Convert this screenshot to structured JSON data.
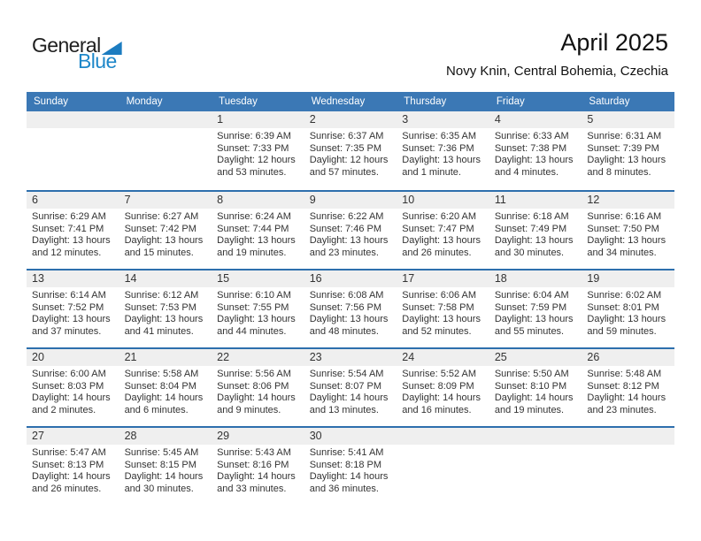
{
  "logo": {
    "general": "General",
    "blue": "Blue"
  },
  "title": "April 2025",
  "subtitle": "Novy Knin, Central Bohemia, Czechia",
  "colors": {
    "header_blue": "#3b78b5",
    "separator_blue": "#2d6fad",
    "day_band_gray": "#efefef",
    "logo_blue": "#1e87c9",
    "logo_triangle_blue": "#1c7cc0"
  },
  "calendar": {
    "weekdays": [
      "Sunday",
      "Monday",
      "Tuesday",
      "Wednesday",
      "Thursday",
      "Friday",
      "Saturday"
    ],
    "weeks": [
      [
        null,
        null,
        {
          "day": 1,
          "sunrise": "Sunrise: 6:39 AM",
          "sunset": "Sunset: 7:33 PM",
          "daylight": "Daylight: 12 hours and 53 minutes."
        },
        {
          "day": 2,
          "sunrise": "Sunrise: 6:37 AM",
          "sunset": "Sunset: 7:35 PM",
          "daylight": "Daylight: 12 hours and 57 minutes."
        },
        {
          "day": 3,
          "sunrise": "Sunrise: 6:35 AM",
          "sunset": "Sunset: 7:36 PM",
          "daylight": "Daylight: 13 hours and 1 minute."
        },
        {
          "day": 4,
          "sunrise": "Sunrise: 6:33 AM",
          "sunset": "Sunset: 7:38 PM",
          "daylight": "Daylight: 13 hours and 4 minutes."
        },
        {
          "day": 5,
          "sunrise": "Sunrise: 6:31 AM",
          "sunset": "Sunset: 7:39 PM",
          "daylight": "Daylight: 13 hours and 8 minutes."
        }
      ],
      [
        {
          "day": 6,
          "sunrise": "Sunrise: 6:29 AM",
          "sunset": "Sunset: 7:41 PM",
          "daylight": "Daylight: 13 hours and 12 minutes."
        },
        {
          "day": 7,
          "sunrise": "Sunrise: 6:27 AM",
          "sunset": "Sunset: 7:42 PM",
          "daylight": "Daylight: 13 hours and 15 minutes."
        },
        {
          "day": 8,
          "sunrise": "Sunrise: 6:24 AM",
          "sunset": "Sunset: 7:44 PM",
          "daylight": "Daylight: 13 hours and 19 minutes."
        },
        {
          "day": 9,
          "sunrise": "Sunrise: 6:22 AM",
          "sunset": "Sunset: 7:46 PM",
          "daylight": "Daylight: 13 hours and 23 minutes."
        },
        {
          "day": 10,
          "sunrise": "Sunrise: 6:20 AM",
          "sunset": "Sunset: 7:47 PM",
          "daylight": "Daylight: 13 hours and 26 minutes."
        },
        {
          "day": 11,
          "sunrise": "Sunrise: 6:18 AM",
          "sunset": "Sunset: 7:49 PM",
          "daylight": "Daylight: 13 hours and 30 minutes."
        },
        {
          "day": 12,
          "sunrise": "Sunrise: 6:16 AM",
          "sunset": "Sunset: 7:50 PM",
          "daylight": "Daylight: 13 hours and 34 minutes."
        }
      ],
      [
        {
          "day": 13,
          "sunrise": "Sunrise: 6:14 AM",
          "sunset": "Sunset: 7:52 PM",
          "daylight": "Daylight: 13 hours and 37 minutes."
        },
        {
          "day": 14,
          "sunrise": "Sunrise: 6:12 AM",
          "sunset": "Sunset: 7:53 PM",
          "daylight": "Daylight: 13 hours and 41 minutes."
        },
        {
          "day": 15,
          "sunrise": "Sunrise: 6:10 AM",
          "sunset": "Sunset: 7:55 PM",
          "daylight": "Daylight: 13 hours and 44 minutes."
        },
        {
          "day": 16,
          "sunrise": "Sunrise: 6:08 AM",
          "sunset": "Sunset: 7:56 PM",
          "daylight": "Daylight: 13 hours and 48 minutes."
        },
        {
          "day": 17,
          "sunrise": "Sunrise: 6:06 AM",
          "sunset": "Sunset: 7:58 PM",
          "daylight": "Daylight: 13 hours and 52 minutes."
        },
        {
          "day": 18,
          "sunrise": "Sunrise: 6:04 AM",
          "sunset": "Sunset: 7:59 PM",
          "daylight": "Daylight: 13 hours and 55 minutes."
        },
        {
          "day": 19,
          "sunrise": "Sunrise: 6:02 AM",
          "sunset": "Sunset: 8:01 PM",
          "daylight": "Daylight: 13 hours and 59 minutes."
        }
      ],
      [
        {
          "day": 20,
          "sunrise": "Sunrise: 6:00 AM",
          "sunset": "Sunset: 8:03 PM",
          "daylight": "Daylight: 14 hours and 2 minutes."
        },
        {
          "day": 21,
          "sunrise": "Sunrise: 5:58 AM",
          "sunset": "Sunset: 8:04 PM",
          "daylight": "Daylight: 14 hours and 6 minutes."
        },
        {
          "day": 22,
          "sunrise": "Sunrise: 5:56 AM",
          "sunset": "Sunset: 8:06 PM",
          "daylight": "Daylight: 14 hours and 9 minutes."
        },
        {
          "day": 23,
          "sunrise": "Sunrise: 5:54 AM",
          "sunset": "Sunset: 8:07 PM",
          "daylight": "Daylight: 14 hours and 13 minutes."
        },
        {
          "day": 24,
          "sunrise": "Sunrise: 5:52 AM",
          "sunset": "Sunset: 8:09 PM",
          "daylight": "Daylight: 14 hours and 16 minutes."
        },
        {
          "day": 25,
          "sunrise": "Sunrise: 5:50 AM",
          "sunset": "Sunset: 8:10 PM",
          "daylight": "Daylight: 14 hours and 19 minutes."
        },
        {
          "day": 26,
          "sunrise": "Sunrise: 5:48 AM",
          "sunset": "Sunset: 8:12 PM",
          "daylight": "Daylight: 14 hours and 23 minutes."
        }
      ],
      [
        {
          "day": 27,
          "sunrise": "Sunrise: 5:47 AM",
          "sunset": "Sunset: 8:13 PM",
          "daylight": "Daylight: 14 hours and 26 minutes."
        },
        {
          "day": 28,
          "sunrise": "Sunrise: 5:45 AM",
          "sunset": "Sunset: 8:15 PM",
          "daylight": "Daylight: 14 hours and 30 minutes."
        },
        {
          "day": 29,
          "sunrise": "Sunrise: 5:43 AM",
          "sunset": "Sunset: 8:16 PM",
          "daylight": "Daylight: 14 hours and 33 minutes."
        },
        {
          "day": 30,
          "sunrise": "Sunrise: 5:41 AM",
          "sunset": "Sunset: 8:18 PM",
          "daylight": "Daylight: 14 hours and 36 minutes."
        },
        null,
        null,
        null
      ]
    ]
  }
}
